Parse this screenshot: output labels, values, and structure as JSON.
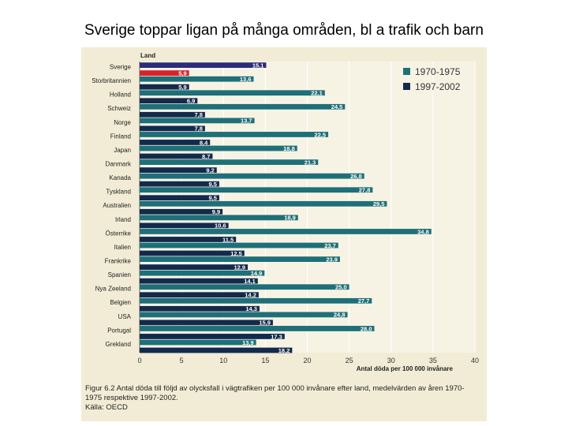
{
  "slide": {
    "title": "Sverige toppar ligan på många områden, bl a trafik och barn"
  },
  "chart_data": {
    "type": "bar",
    "orientation": "horizontal",
    "category_header": "Land",
    "categories": [
      "Sverige",
      "Storbritannien",
      "Holland",
      "Schweiz",
      "Norge",
      "Finland",
      "Japan",
      "Danmark",
      "Kanada",
      "Tyskland",
      "Australien",
      "Irland",
      "Österrike",
      "Italien",
      "Frankrike",
      "Spanien",
      "Nya Zeeland",
      "Belgien",
      "USA",
      "Portugal",
      "Grekland"
    ],
    "series": [
      {
        "name": "1970-1975",
        "color": "#1e6f78",
        "highlight_color": "#2c2c7a",
        "values": [
          15.1,
          13.6,
          22.1,
          24.5,
          13.7,
          22.5,
          18.8,
          21.3,
          26.8,
          27.8,
          29.5,
          18.9,
          34.8,
          23.7,
          23.9,
          14.9,
          25.0,
          27.7,
          24.8,
          28.0,
          13.9
        ],
        "labels": [
          "15,1",
          "13,6",
          "22,1",
          "24,5",
          "13,7",
          "22,5",
          "18,8",
          "21,3",
          "26,8",
          "27,8",
          "29,5",
          "18,9",
          "34,8",
          "23,7",
          "23,9",
          "14,9",
          "25,0",
          "27,7",
          "24,8",
          "28,0",
          "13,9"
        ]
      },
      {
        "name": "1997-2002",
        "color": "#122a4c",
        "highlight_color": "#d4242b",
        "values": [
          5.9,
          5.9,
          6.9,
          7.8,
          7.8,
          8.4,
          8.7,
          9.2,
          9.5,
          9.5,
          9.9,
          10.6,
          11.5,
          12.5,
          12.9,
          14.1,
          14.2,
          14.3,
          15.9,
          17.3,
          18.2
        ],
        "labels": [
          "5,9",
          "5,9",
          "6,9",
          "7,8",
          "7,8",
          "8,4",
          "8,7",
          "9,2",
          "9,5",
          "9,5",
          "9,9",
          "10,6",
          "11,5",
          "12,5",
          "12,9",
          "14,1",
          "14,2",
          "14,3",
          "15,9",
          "17,3",
          "18,2"
        ]
      }
    ],
    "highlight_category": "Sverige",
    "xlim": [
      0,
      40
    ],
    "xticks": [
      "0",
      "5",
      "10",
      "15",
      "20",
      "25",
      "30",
      "35",
      "40"
    ],
    "xlabel": "Antal döda per 100 000 invånare",
    "legend_position": "top-right",
    "grid": true
  },
  "caption": {
    "text": "Figur 6.2  Antal döda till följd av olycksfall i vägtrafiken per 100 000 invånare efter land, medelvärden av åren 1970-1975 respektive 1997-2002.",
    "source": "Källa: OECD"
  }
}
